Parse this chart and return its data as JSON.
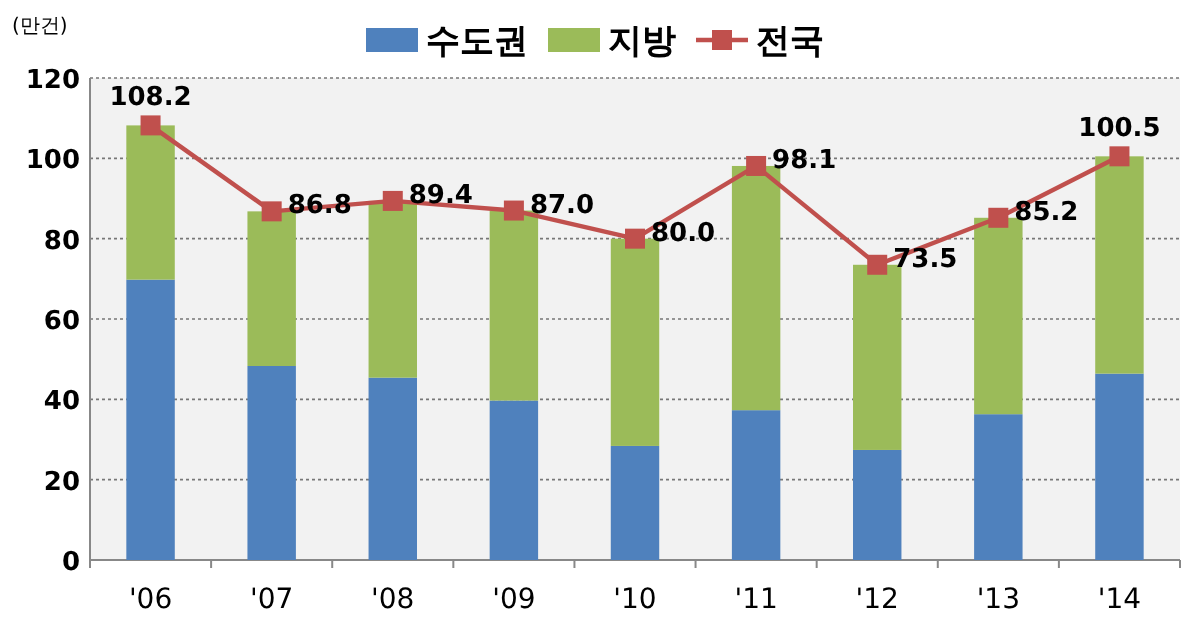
{
  "chart_data": {
    "type": "bar",
    "stacked": true,
    "ylabel": "(만건)",
    "categories": [
      "'06",
      "'07",
      "'08",
      "'09",
      "'10",
      "'11",
      "'12",
      "'13",
      "'14"
    ],
    "series": [
      {
        "name": "수도권",
        "color": "#4f81bd",
        "values": [
          69.8,
          48.3,
          45.4,
          39.7,
          28.4,
          37.3,
          27.4,
          36.3,
          46.4
        ]
      },
      {
        "name": "지방",
        "color": "#9bbb59",
        "values": [
          38.4,
          38.5,
          44.0,
          47.3,
          51.6,
          60.8,
          46.1,
          48.9,
          54.1
        ]
      },
      {
        "name": "전국",
        "type": "line",
        "color": "#c0504d",
        "marker": "square",
        "values": [
          108.2,
          86.8,
          89.4,
          87.0,
          80.0,
          98.1,
          73.5,
          85.2,
          100.5
        ],
        "value_labels": [
          "108.2",
          "86.8",
          "89.4",
          "87.0",
          "80.0",
          "98.1",
          "73.5",
          "85.2",
          "100.5"
        ]
      }
    ],
    "ylim": [
      0,
      120
    ],
    "yticks": [
      0,
      20,
      40,
      60,
      80,
      100,
      120
    ],
    "grid": "y",
    "legend": "top"
  }
}
